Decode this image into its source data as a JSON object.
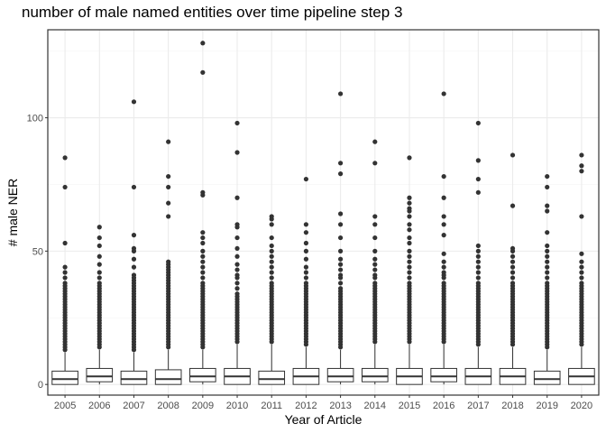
{
  "chart_data": {
    "type": "boxplot",
    "title": "number of male named entities over time pipeline step 3",
    "xlabel": "Year of Article",
    "ylabel": "# male NER",
    "ylim": [
      -4,
      133
    ],
    "y_ticks": [
      0,
      50,
      100
    ],
    "grid": true,
    "theme": "bw",
    "categories": [
      "2005",
      "2006",
      "2007",
      "2008",
      "2009",
      "2010",
      "2011",
      "2012",
      "2013",
      "2014",
      "2015",
      "2016",
      "2017",
      "2018",
      "2019",
      "2020"
    ],
    "boxes": [
      {
        "q1": 0,
        "median": 2,
        "q3": 5,
        "whisker_low": 0,
        "whisker_high": 12,
        "outliers": [
          85,
          74,
          53,
          44,
          42,
          40,
          38,
          37,
          36,
          35,
          34,
          33,
          32,
          31,
          30,
          29,
          28,
          27,
          26,
          25,
          24,
          23,
          22,
          21,
          20,
          19,
          18,
          17,
          16,
          15,
          14,
          13
        ]
      },
      {
        "q1": 1,
        "median": 3,
        "q3": 6,
        "whisker_low": 0,
        "whisker_high": 13,
        "outliers": [
          59,
          55,
          52,
          48,
          45,
          42,
          40,
          38,
          37,
          36,
          35,
          34,
          33,
          32,
          31,
          30,
          29,
          28,
          27,
          26,
          25,
          24,
          23,
          22,
          21,
          20,
          19,
          18,
          17,
          16,
          15,
          14
        ]
      },
      {
        "q1": 0,
        "median": 2,
        "q3": 5,
        "whisker_low": 0,
        "whisker_high": 12,
        "outliers": [
          106,
          74,
          56,
          51,
          50,
          47,
          44,
          41,
          40,
          39,
          38,
          37,
          36,
          35,
          34,
          33,
          32,
          31,
          30,
          29,
          28,
          27,
          26,
          25,
          24,
          23,
          22,
          21,
          20,
          19,
          18,
          17,
          16,
          15,
          14,
          13
        ]
      },
      {
        "q1": 0,
        "median": 2,
        "q3": 5.5,
        "whisker_low": 0,
        "whisker_high": 13,
        "outliers": [
          91,
          78,
          74,
          68,
          63,
          46,
          45,
          44,
          43,
          42,
          41,
          40,
          39,
          38,
          37,
          36,
          35,
          34,
          33,
          32,
          31,
          30,
          29,
          28,
          27,
          26,
          25,
          24,
          23,
          22,
          21,
          20,
          19,
          18,
          17,
          16,
          15,
          14
        ]
      },
      {
        "q1": 1,
        "median": 3,
        "q3": 6,
        "whisker_low": 0,
        "whisker_high": 13,
        "outliers": [
          128,
          117,
          72,
          71,
          57,
          55,
          53,
          50,
          48,
          46,
          44,
          42,
          40,
          38,
          37,
          36,
          35,
          34,
          33,
          32,
          31,
          30,
          29,
          28,
          27,
          26,
          25,
          24,
          23,
          22,
          21,
          20,
          19,
          18,
          17,
          16,
          15,
          14
        ]
      },
      {
        "q1": 0,
        "median": 3,
        "q3": 6,
        "whisker_low": 0,
        "whisker_high": 15,
        "outliers": [
          98,
          87,
          70,
          60,
          59,
          55,
          51,
          48,
          45,
          43,
          41,
          40,
          38,
          36,
          34,
          33,
          32,
          31,
          30,
          29,
          28,
          27,
          26,
          25,
          24,
          23,
          22,
          21,
          20,
          19,
          18,
          17,
          16
        ]
      },
      {
        "q1": 0,
        "median": 2,
        "q3": 5,
        "whisker_low": 0,
        "whisker_high": 15,
        "outliers": [
          63,
          62,
          60,
          55,
          52,
          50,
          48,
          46,
          44,
          42,
          40,
          38,
          37,
          36,
          35,
          34,
          33,
          32,
          31,
          30,
          29,
          28,
          27,
          26,
          25,
          24,
          23,
          22,
          21,
          20,
          19,
          18,
          17,
          16
        ]
      },
      {
        "q1": 0,
        "median": 3,
        "q3": 6,
        "whisker_low": 0,
        "whisker_high": 14,
        "outliers": [
          77,
          60,
          57,
          53,
          50,
          47,
          44,
          42,
          40,
          38,
          37,
          36,
          35,
          34,
          33,
          32,
          31,
          30,
          29,
          28,
          27,
          26,
          25,
          24,
          23,
          22,
          21,
          20,
          19,
          18,
          17,
          16,
          15
        ]
      },
      {
        "q1": 1,
        "median": 3,
        "q3": 6,
        "whisker_low": 0,
        "whisker_high": 13,
        "outliers": [
          109,
          83,
          79,
          64,
          60,
          55,
          50,
          47,
          45,
          43,
          41,
          40,
          38,
          36,
          35,
          34,
          33,
          32,
          31,
          30,
          29,
          28,
          27,
          26,
          25,
          24,
          23,
          22,
          21,
          20,
          19,
          18,
          17,
          16,
          15,
          14
        ]
      },
      {
        "q1": 1,
        "median": 3,
        "q3": 6,
        "whisker_low": 0,
        "whisker_high": 15,
        "outliers": [
          91,
          83,
          63,
          60,
          55,
          50,
          47,
          45,
          43,
          41,
          40,
          38,
          37,
          36,
          35,
          34,
          33,
          32,
          31,
          30,
          29,
          28,
          27,
          26,
          25,
          24,
          23,
          22,
          21,
          20,
          19,
          18,
          17,
          16
        ]
      },
      {
        "q1": 0,
        "median": 3,
        "q3": 6,
        "whisker_low": 0,
        "whisker_high": 15,
        "outliers": [
          85,
          70,
          68,
          66,
          65,
          63,
          60,
          58,
          55,
          53,
          50,
          48,
          46,
          44,
          42,
          40,
          38,
          37,
          36,
          35,
          34,
          33,
          32,
          31,
          30,
          29,
          28,
          27,
          26,
          25,
          24,
          23,
          22,
          21,
          20,
          19,
          18,
          17,
          16
        ]
      },
      {
        "q1": 1,
        "median": 3,
        "q3": 6,
        "whisker_low": 0,
        "whisker_high": 15,
        "outliers": [
          109,
          78,
          70,
          63,
          60,
          56,
          49,
          46,
          44,
          42,
          41,
          40,
          38,
          37,
          36,
          35,
          34,
          33,
          32,
          31,
          30,
          29,
          28,
          27,
          26,
          25,
          24,
          23,
          22,
          21,
          20,
          19,
          18,
          17,
          16
        ]
      },
      {
        "q1": 0,
        "median": 3,
        "q3": 6,
        "whisker_low": 0,
        "whisker_high": 14,
        "outliers": [
          98,
          84,
          77,
          72,
          52,
          50,
          48,
          46,
          44,
          42,
          40,
          38,
          37,
          36,
          35,
          34,
          33,
          32,
          31,
          30,
          29,
          28,
          27,
          26,
          25,
          24,
          23,
          22,
          21,
          20,
          19,
          18,
          17,
          16,
          15
        ]
      },
      {
        "q1": 0,
        "median": 3,
        "q3": 6,
        "whisker_low": 0,
        "whisker_high": 14,
        "outliers": [
          86,
          67,
          51,
          50,
          48,
          46,
          44,
          42,
          40,
          38,
          37,
          36,
          35,
          34,
          33,
          32,
          31,
          30,
          29,
          28,
          27,
          26,
          25,
          24,
          23,
          22,
          21,
          20,
          19,
          18,
          17,
          16,
          15
        ]
      },
      {
        "q1": 0,
        "median": 2,
        "q3": 5,
        "whisker_low": 0,
        "whisker_high": 13,
        "outliers": [
          78,
          74,
          67,
          65,
          57,
          52,
          50,
          48,
          46,
          44,
          42,
          40,
          38,
          37,
          36,
          35,
          34,
          33,
          32,
          31,
          30,
          29,
          28,
          27,
          26,
          25,
          24,
          23,
          22,
          21,
          20,
          19,
          18,
          17,
          16,
          15,
          14
        ]
      },
      {
        "q1": 0,
        "median": 3,
        "q3": 6,
        "whisker_low": 0,
        "whisker_high": 14,
        "outliers": [
          86,
          82,
          80,
          63,
          49,
          46,
          44,
          42,
          40,
          38,
          37,
          36,
          35,
          34,
          33,
          32,
          31,
          30,
          29,
          28,
          27,
          26,
          25,
          24,
          23,
          22,
          21,
          20,
          19,
          18,
          17,
          16,
          15
        ]
      }
    ],
    "colors": {
      "panel_border": "#333333",
      "grid_major": "#ebebeb",
      "grid_minor": "#f5f5f5",
      "box_line": "#333333",
      "outlier": "#333333"
    }
  }
}
